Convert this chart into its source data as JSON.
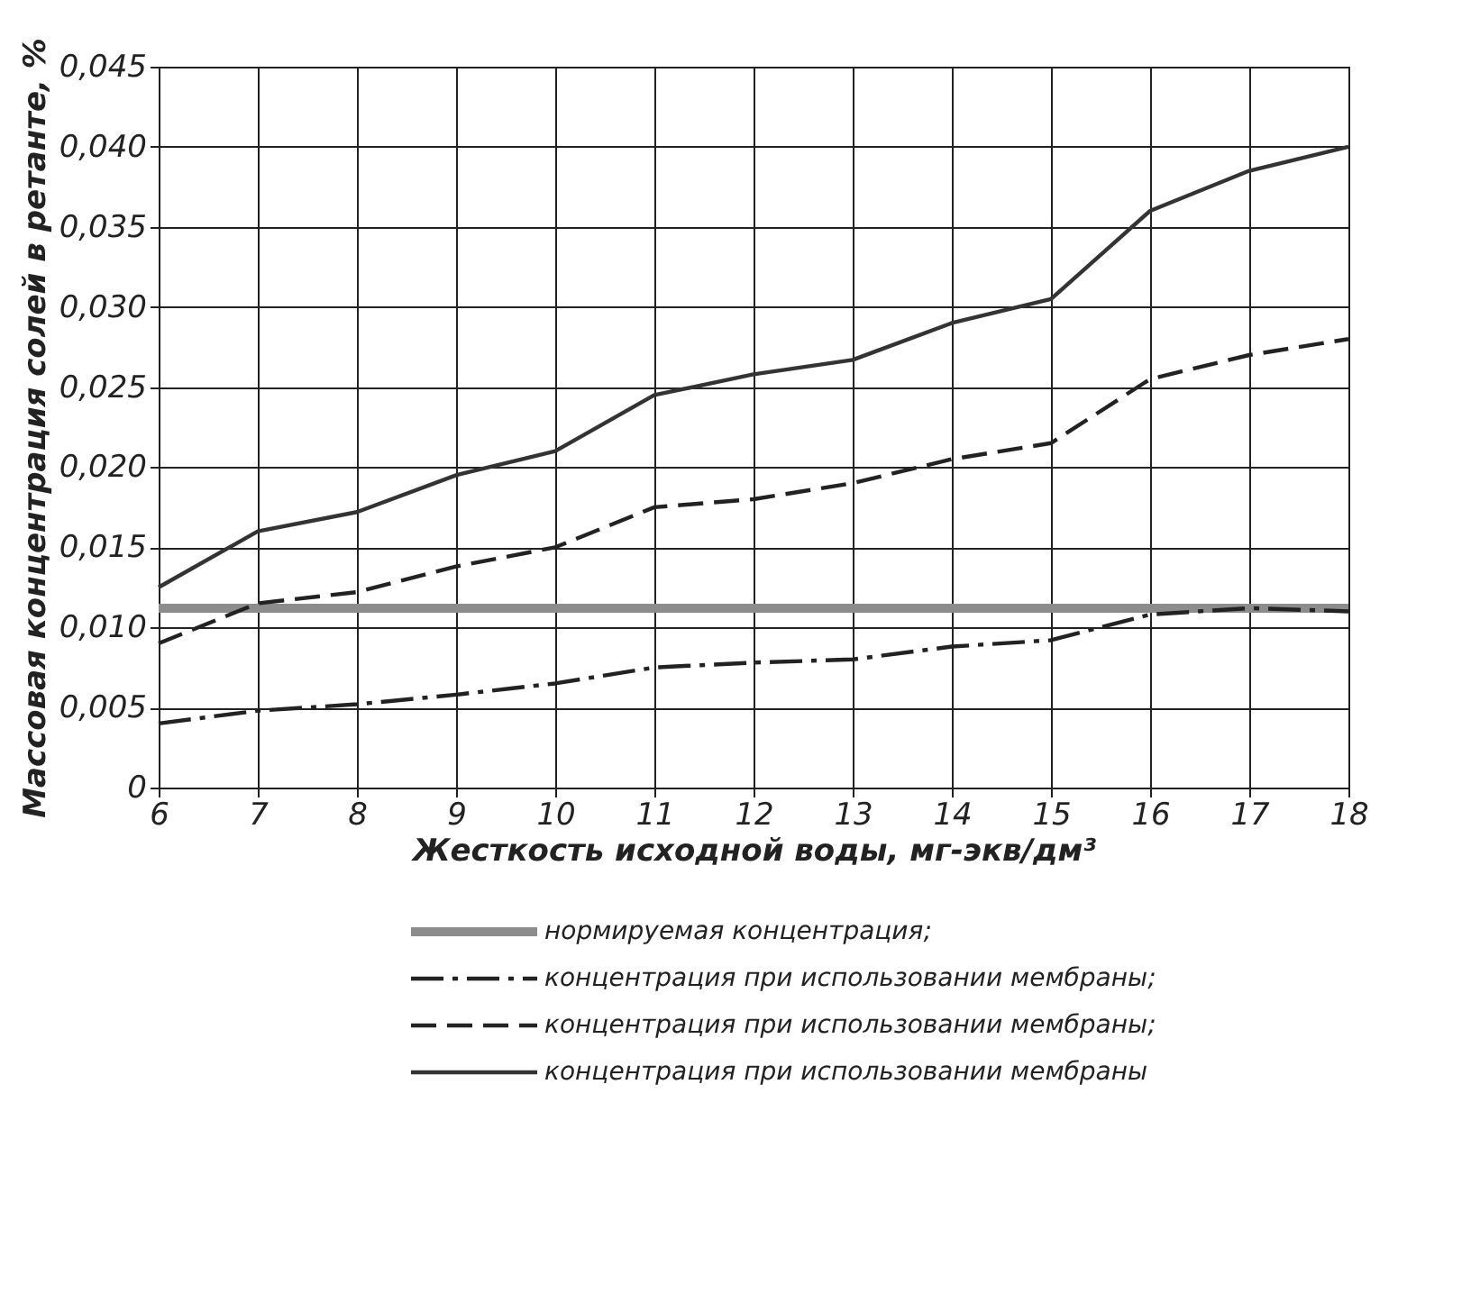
{
  "chart_data": {
    "type": "line",
    "xlabel": "Жесткость исходной воды, мг-экв/дм³",
    "ylabel": "Массовая концентрация солей в ретанте, %",
    "x": [
      6,
      7,
      8,
      9,
      10,
      11,
      12,
      13,
      14,
      15,
      16,
      17,
      18
    ],
    "series": [
      {
        "name": "нормируемая концентрация;",
        "color": "#8c8c8c",
        "line_style": "solid",
        "x": [
          6,
          18
        ],
        "values": [
          0.0112,
          0.0112
        ]
      },
      {
        "name": "концентрация при использовании мембраны;",
        "color": "#222222",
        "line_style": "dashdot",
        "values": [
          0.004,
          0.0048,
          0.0052,
          0.0058,
          0.0065,
          0.0075,
          0.0078,
          0.008,
          0.0088,
          0.0092,
          0.0108,
          0.0112,
          0.011
        ]
      },
      {
        "name": "концентрация при использовании мембраны;",
        "color": "#222222",
        "line_style": "dashed",
        "values": [
          0.009,
          0.0115,
          0.0122,
          0.0138,
          0.015,
          0.0175,
          0.018,
          0.019,
          0.0205,
          0.0215,
          0.0255,
          0.027,
          0.028
        ]
      },
      {
        "name": "концентрация при использовании мембраны",
        "color": "#333333",
        "line_style": "solid",
        "values": [
          0.0125,
          0.016,
          0.0172,
          0.0195,
          0.021,
          0.0245,
          0.0258,
          0.0267,
          0.029,
          0.0305,
          0.036,
          0.0385,
          0.04
        ]
      }
    ],
    "xlim": [
      6,
      18
    ],
    "xticks": [
      6,
      7,
      8,
      9,
      10,
      11,
      12,
      13,
      14,
      15,
      16,
      17,
      18
    ],
    "ylim": [
      0,
      0.045
    ],
    "yticks": [
      0,
      {
        "value": 0.005,
        "label": "0,005"
      },
      {
        "value": 0.01,
        "label": "0,010"
      },
      {
        "value": 0.015,
        "label": "0,015"
      },
      {
        "value": 0.02,
        "label": "0,020"
      },
      {
        "value": 0.025,
        "label": "0,025"
      },
      {
        "value": 0.03,
        "label": "0,030"
      },
      {
        "value": 0.035,
        "label": "0,035"
      },
      {
        "value": 0.04,
        "label": "0,040"
      },
      {
        "value": 0.045,
        "label": "0,045"
      }
    ],
    "grid": true,
    "legend": "bottom",
    "marker": "none"
  }
}
